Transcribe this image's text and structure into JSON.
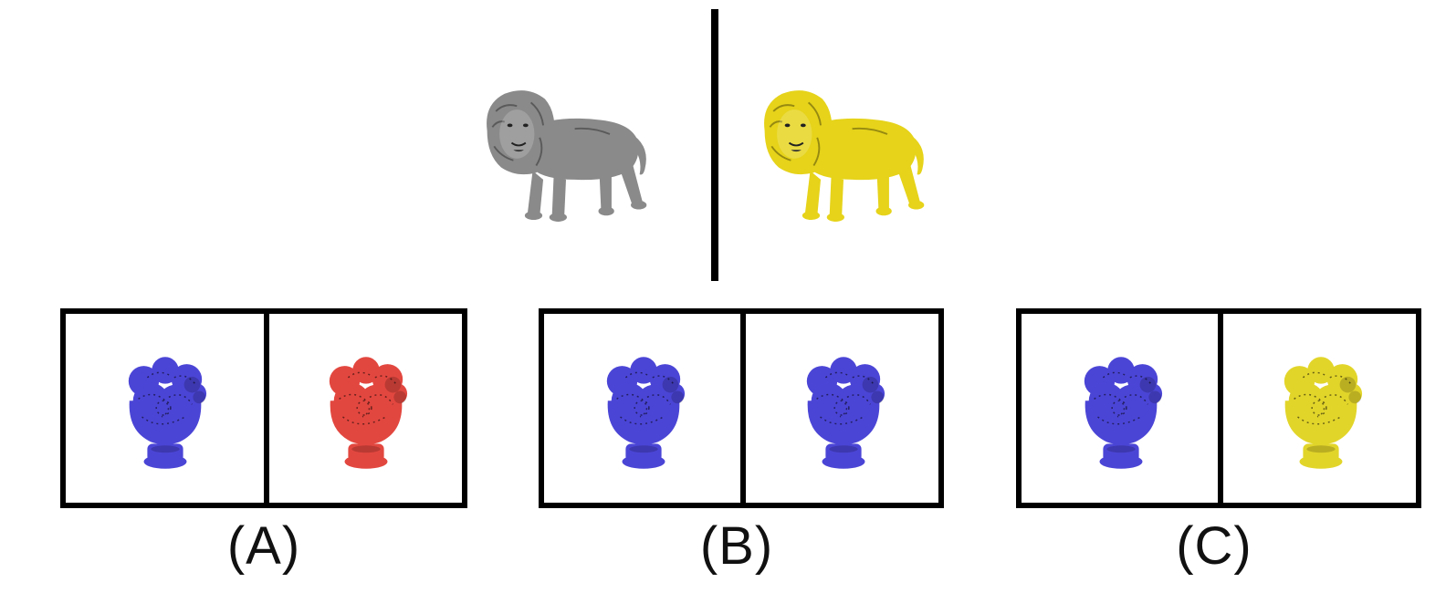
{
  "reference": {
    "source_color": "#8a8a8a",
    "target_color": "#e6d31a"
  },
  "options": [
    {
      "label": "(A)",
      "left_color": "#4b45d6",
      "right_color": "#e2473f"
    },
    {
      "label": "(B)",
      "left_color": "#4b45d6",
      "right_color": "#4b45d6"
    },
    {
      "label": "(C)",
      "left_color": "#4b45d6",
      "right_color": "#e2d52a"
    }
  ]
}
